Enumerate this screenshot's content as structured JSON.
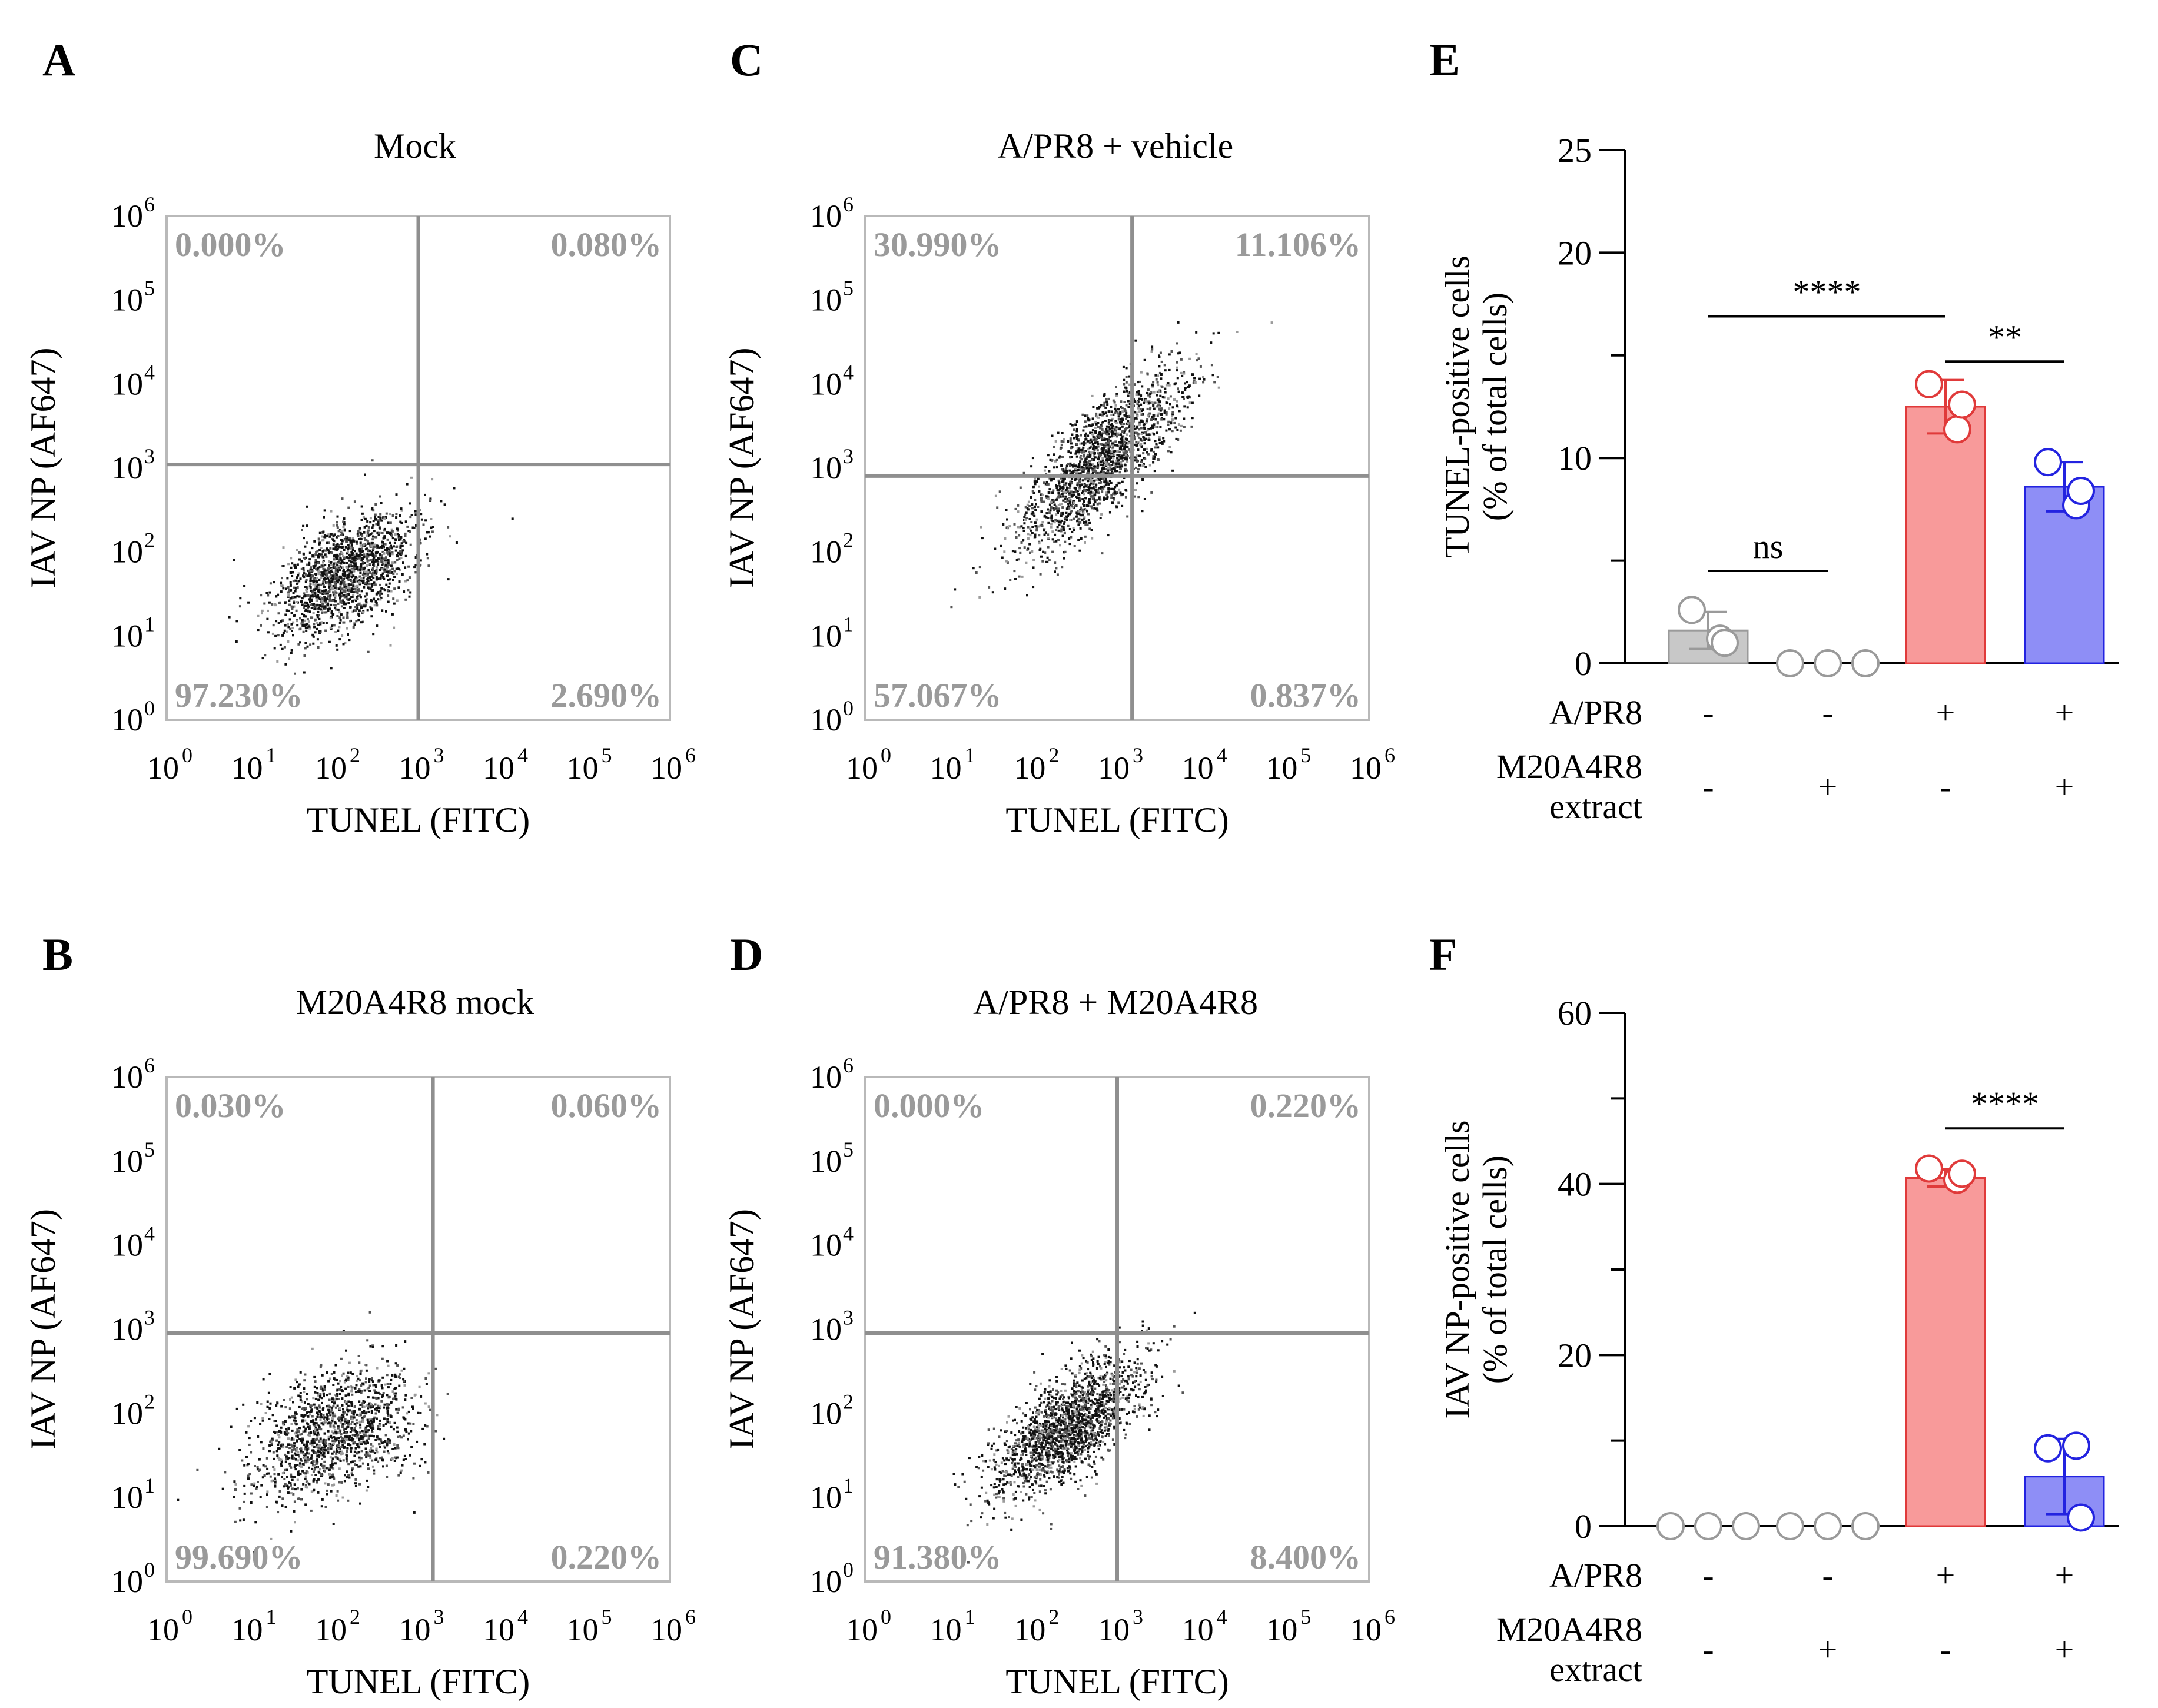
{
  "colors": {
    "gate": "#8f8f8f",
    "frame": "#b9b9b9",
    "percent_text": "#9a9a9a",
    "bar_no_virus": "#c8c8c8",
    "bar_virus_vehicle": "#f89a9a",
    "bar_virus_extract": "#8e8ef6",
    "dot_no_virus": "#9a9a9a",
    "dot_virus_vehicle": "#e03a3a",
    "dot_virus_extract": "#2323e0"
  },
  "panels": {
    "A": {
      "letter": "A",
      "title": "Mock"
    },
    "B": {
      "letter": "B",
      "title": "M20A4R8 mock"
    },
    "C": {
      "letter": "C",
      "title": "A/PR8 + vehicle"
    },
    "D": {
      "letter": "D",
      "title": "A/PR8 + M20A4R8"
    },
    "E": {
      "letter": "E"
    },
    "F": {
      "letter": "F"
    }
  },
  "chart_data": [
    {
      "id": "A",
      "type": "scatter",
      "title": "Mock",
      "xlabel": "TUNEL (FITC)",
      "ylabel": "IAV NP (AF647)",
      "xscale": "log",
      "yscale": "log",
      "xlim": [
        1,
        1000000
      ],
      "ylim": [
        1,
        1000000
      ],
      "x_tick_labels": [
        "10",
        "10",
        "10",
        "10",
        "10",
        "10",
        "10"
      ],
      "x_tick_exponents": [
        "0",
        "1",
        "2",
        "3",
        "4",
        "5",
        "6"
      ],
      "y_tick_labels": [
        "10",
        "10",
        "10",
        "10",
        "10",
        "10",
        "10"
      ],
      "y_tick_exponents": [
        "0",
        "1",
        "2",
        "3",
        "4",
        "5",
        "6"
      ],
      "gate": {
        "x": 1000,
        "y": 1100
      },
      "quadrants": {
        "top_left": "0.000%",
        "top_right": "0.080%",
        "bottom_left": "97.230%",
        "bottom_right": "2.690%"
      },
      "population": {
        "center": [
          130,
          55
        ],
        "spread_log": [
          0.42,
          0.38
        ],
        "correlation": 0.55,
        "n": 1600
      }
    },
    {
      "id": "B",
      "type": "scatter",
      "title": "M20A4R8 mock",
      "xlabel": "TUNEL (FITC)",
      "ylabel": "IAV NP (AF647)",
      "xscale": "log",
      "yscale": "log",
      "xlim": [
        1,
        1000000
      ],
      "ylim": [
        1,
        1000000
      ],
      "x_tick_labels": [
        "10",
        "10",
        "10",
        "10",
        "10",
        "10",
        "10"
      ],
      "x_tick_exponents": [
        "0",
        "1",
        "2",
        "3",
        "4",
        "5",
        "6"
      ],
      "y_tick_labels": [
        "10",
        "10",
        "10",
        "10",
        "10",
        "10",
        "10"
      ],
      "y_tick_exponents": [
        "0",
        "1",
        "2",
        "3",
        "4",
        "5",
        "6"
      ],
      "gate": {
        "x": 1500,
        "y": 900
      },
      "quadrants": {
        "top_left": "0.030%",
        "top_right": "0.060%",
        "bottom_left": "99.690%",
        "bottom_right": "0.220%"
      },
      "population": {
        "center": [
          90,
          55
        ],
        "spread_log": [
          0.5,
          0.4
        ],
        "correlation": 0.45,
        "n": 1400
      }
    },
    {
      "id": "C",
      "type": "scatter",
      "title": "A/PR8 + vehicle",
      "xlabel": "TUNEL (FITC)",
      "ylabel": "IAV NP (AF647)",
      "xscale": "log",
      "yscale": "log",
      "xlim": [
        1,
        1000000
      ],
      "ylim": [
        1,
        1000000
      ],
      "x_tick_labels": [
        "10",
        "10",
        "10",
        "10",
        "10",
        "10",
        "10"
      ],
      "x_tick_exponents": [
        "0",
        "1",
        "2",
        "3",
        "4",
        "5",
        "6"
      ],
      "y_tick_labels": [
        "10",
        "10",
        "10",
        "10",
        "10",
        "10",
        "10"
      ],
      "y_tick_exponents": [
        "0",
        "1",
        "2",
        "3",
        "4",
        "5",
        "6"
      ],
      "gate": {
        "x": 1500,
        "y": 800
      },
      "quadrants": {
        "top_left": "30.990%",
        "top_right": "11.106%",
        "bottom_left": "57.067%",
        "bottom_right": "0.837%"
      },
      "population": {
        "center": [
          600,
          1200
        ],
        "spread_log": [
          0.5,
          0.55
        ],
        "correlation": 0.8,
        "n": 1800
      }
    },
    {
      "id": "D",
      "type": "scatter",
      "title": "A/PR8 + M20A4R8",
      "xlabel": "TUNEL (FITC)",
      "ylabel": "IAV NP (AF647)",
      "xscale": "log",
      "yscale": "log",
      "xlim": [
        1,
        1000000
      ],
      "ylim": [
        1,
        1000000
      ],
      "x_tick_labels": [
        "10",
        "10",
        "10",
        "10",
        "10",
        "10",
        "10"
      ],
      "x_tick_exponents": [
        "0",
        "1",
        "2",
        "3",
        "4",
        "5",
        "6"
      ],
      "y_tick_labels": [
        "10",
        "10",
        "10",
        "10",
        "10",
        "10",
        "10"
      ],
      "y_tick_exponents": [
        "0",
        "1",
        "2",
        "3",
        "4",
        "5",
        "6"
      ],
      "gate": {
        "x": 1000,
        "y": 900
      },
      "quadrants": {
        "top_left": "0.000%",
        "top_right": "0.220%",
        "bottom_left": "91.380%",
        "bottom_right": "8.400%"
      },
      "population": {
        "center": [
          250,
          70
        ],
        "spread_log": [
          0.45,
          0.4
        ],
        "correlation": 0.7,
        "n": 1800
      }
    },
    {
      "id": "E",
      "type": "bar",
      "ylabel_lines": [
        "TUNEL-positive cells",
        "(% of total cells)"
      ],
      "ylim": [
        0,
        25
      ],
      "yticks": [
        0,
        10,
        20,
        25
      ],
      "y_tick_labels": [
        "0",
        "10",
        "20",
        "25"
      ],
      "minor_yticks": [
        5,
        15
      ],
      "values": [
        1.6,
        0.0,
        12.5,
        8.6
      ],
      "errors": [
        0.9,
        0.05,
        1.3,
        1.2
      ],
      "points": [
        [
          2.6,
          1.2,
          1.0
        ],
        [
          0.0,
          0.0,
          0.0
        ],
        [
          13.6,
          11.4,
          12.6
        ],
        [
          9.8,
          7.7,
          8.4
        ]
      ],
      "row_labels": [
        "A/PR8",
        "M20A4R8",
        "extract"
      ],
      "a_pr8": [
        "-",
        "-",
        "+",
        "+"
      ],
      "m20a4r8_extract": [
        "-",
        "+",
        "-",
        "+"
      ],
      "annotations": [
        {
          "text": "ns",
          "from": 0,
          "to": 1,
          "y": 4.5
        },
        {
          "text": "****",
          "from": 0,
          "to": 2,
          "y": 16.9
        },
        {
          "text": "**",
          "from": 2,
          "to": 3,
          "y": 14.7
        }
      ]
    },
    {
      "id": "F",
      "type": "bar",
      "ylabel_lines": [
        "IAV NP-positive cells",
        "(% of total cells)"
      ],
      "ylim": [
        0,
        60
      ],
      "yticks": [
        0,
        20,
        40,
        60
      ],
      "y_tick_labels": [
        "0",
        "20",
        "40",
        "60"
      ],
      "minor_yticks": [
        10,
        30,
        50
      ],
      "values": [
        0.0,
        0.0,
        40.7,
        5.8
      ],
      "errors": [
        0.05,
        0.05,
        1.0,
        4.4
      ],
      "points": [
        [
          0.0,
          0.0,
          0.0
        ],
        [
          0.0,
          0.0,
          0.0
        ],
        [
          41.8,
          40.5,
          41.2
        ],
        [
          9.1,
          9.4,
          1.0
        ]
      ],
      "row_labels": [
        "A/PR8",
        "M20A4R8",
        "extract"
      ],
      "a_pr8": [
        "-",
        "-",
        "+",
        "+"
      ],
      "m20a4r8_extract": [
        "-",
        "+",
        "-",
        "+"
      ],
      "annotations": [
        {
          "text": "****",
          "from": 2,
          "to": 3,
          "y": 46.5
        }
      ]
    }
  ]
}
